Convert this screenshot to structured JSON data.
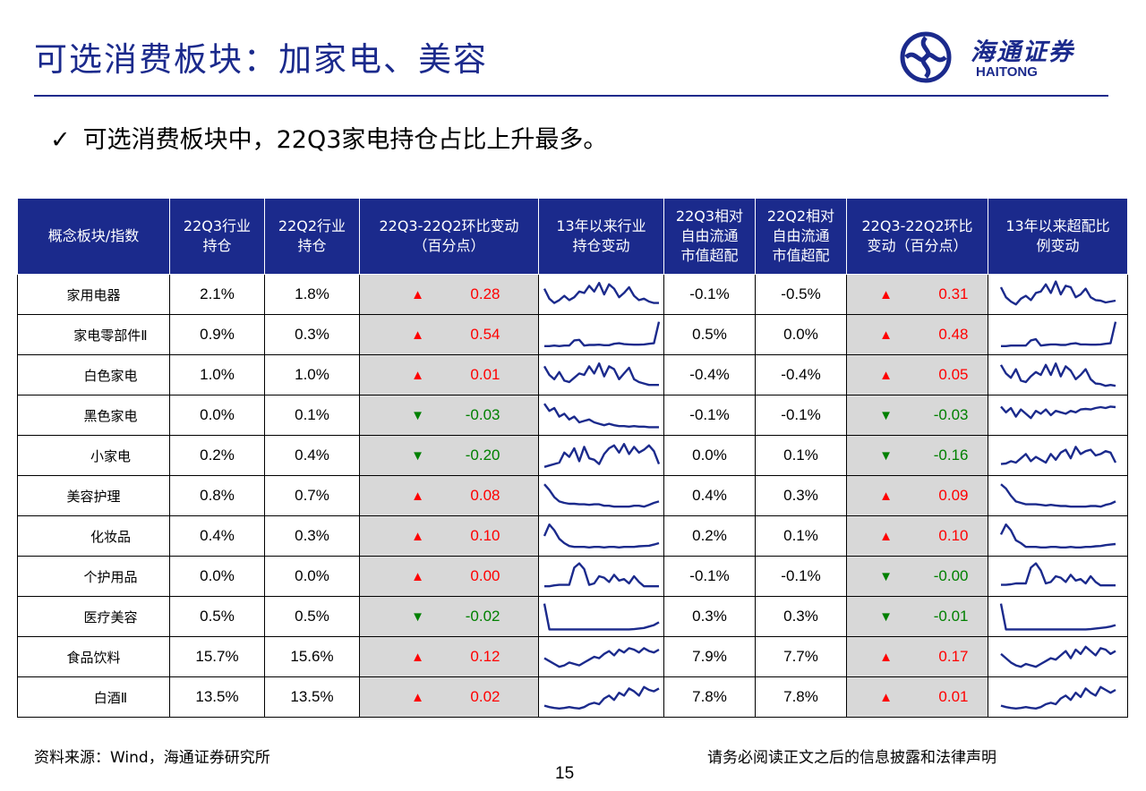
{
  "page": {
    "title": "可选消费板块：加家电、美容",
    "bullet": "可选消费板块中，22Q3家电持仓占比上升最多。",
    "source": "资料来源：Wind，海通证券研究所",
    "disclaimer": "请务必阅读正文之后的信息披露和法律声明",
    "page_number": "15"
  },
  "logo": {
    "cn": "海通证券",
    "en": "HAITONG",
    "icon": "haitong-swirl-icon"
  },
  "colors": {
    "navy": "#1b2a8c",
    "up": "#ff0000",
    "down": "#008000",
    "shade": "#d8d8d8"
  },
  "table": {
    "headers": [
      "概念板块/指数",
      "22Q3行业\n持仓",
      "22Q2行业\n持仓",
      "22Q3-22Q2环比变动\n（百分点）",
      "13年以来行业\n持仓变动",
      "22Q3相对\n自由流通\n市值超配",
      "22Q2相对\n自由流通\n市值超配",
      "22Q3-22Q2环比\n变动（百分点）",
      "13年以来超配比\n例变动"
    ],
    "rows": [
      {
        "name": "家用电器",
        "sub": false,
        "q3": "2.1%",
        "q2": "1.8%",
        "chg_dir": "up",
        "chg": "0.28",
        "q3_ow": "-0.1%",
        "q2_ow": "-0.5%",
        "ow_dir": "up",
        "ow_chg": "0.31",
        "spark1": [
          0.7,
          0.35,
          0.2,
          0.3,
          0.45,
          0.3,
          0.4,
          0.6,
          0.55,
          0.8,
          0.6,
          0.9,
          0.5,
          0.85,
          0.7,
          0.4,
          0.55,
          0.75,
          0.45,
          0.3,
          0.35,
          0.25,
          0.2,
          0.2
        ],
        "spark2": [
          0.75,
          0.4,
          0.25,
          0.15,
          0.35,
          0.45,
          0.3,
          0.55,
          0.6,
          0.85,
          0.55,
          0.95,
          0.5,
          0.8,
          0.75,
          0.4,
          0.5,
          0.7,
          0.4,
          0.3,
          0.28,
          0.22,
          0.25,
          0.28
        ]
      },
      {
        "name": "家电零部件Ⅱ",
        "sub": true,
        "q3": "0.9%",
        "q2": "0.3%",
        "chg_dir": "up",
        "chg": "0.54",
        "q3_ow": "0.5%",
        "q2_ow": "0.0%",
        "ow_dir": "up",
        "ow_chg": "0.48",
        "spark1": [
          0.1,
          0.1,
          0.12,
          0.1,
          0.12,
          0.12,
          0.3,
          0.32,
          0.12,
          0.14,
          0.14,
          0.15,
          0.13,
          0.13,
          0.18,
          0.2,
          0.17,
          0.16,
          0.15,
          0.15,
          0.16,
          0.18,
          0.2,
          0.95
        ],
        "spark2": [
          0.1,
          0.1,
          0.12,
          0.12,
          0.12,
          0.12,
          0.3,
          0.34,
          0.12,
          0.14,
          0.16,
          0.16,
          0.14,
          0.14,
          0.18,
          0.2,
          0.16,
          0.16,
          0.15,
          0.15,
          0.16,
          0.18,
          0.2,
          0.95
        ]
      },
      {
        "name": "白色家电",
        "sub": true,
        "q3": "1.0%",
        "q2": "1.0%",
        "chg_dir": "up",
        "chg": "0.01",
        "q3_ow": "-0.4%",
        "q2_ow": "-0.4%",
        "ow_dir": "up",
        "ow_chg": "0.05",
        "spark1": [
          0.8,
          0.5,
          0.35,
          0.6,
          0.3,
          0.25,
          0.4,
          0.55,
          0.5,
          0.8,
          0.55,
          0.9,
          0.45,
          0.8,
          0.7,
          0.35,
          0.55,
          0.75,
          0.35,
          0.25,
          0.2,
          0.15,
          0.15,
          0.15
        ],
        "spark2": [
          0.85,
          0.55,
          0.4,
          0.7,
          0.3,
          0.25,
          0.45,
          0.6,
          0.5,
          0.85,
          0.5,
          0.9,
          0.45,
          0.8,
          0.65,
          0.35,
          0.5,
          0.7,
          0.35,
          0.2,
          0.18,
          0.12,
          0.15,
          0.12
        ]
      },
      {
        "name": "黑色家电",
        "sub": true,
        "q3": "0.0%",
        "q2": "0.1%",
        "chg_dir": "down",
        "chg": "-0.03",
        "q3_ow": "-0.1%",
        "q2_ow": "-0.1%",
        "ow_dir": "down",
        "ow_chg": "-0.03",
        "spark1": [
          0.9,
          0.65,
          0.75,
          0.45,
          0.55,
          0.35,
          0.45,
          0.25,
          0.3,
          0.35,
          0.25,
          0.2,
          0.15,
          0.2,
          0.15,
          0.12,
          0.12,
          0.1,
          0.12,
          0.1,
          0.1,
          0.08,
          0.08,
          0.08
        ],
        "spark2": [
          0.8,
          0.6,
          0.75,
          0.45,
          0.7,
          0.55,
          0.4,
          0.65,
          0.55,
          0.7,
          0.5,
          0.65,
          0.6,
          0.55,
          0.65,
          0.6,
          0.7,
          0.72,
          0.7,
          0.75,
          0.78,
          0.75,
          0.8,
          0.78
        ]
      },
      {
        "name": "小家电",
        "sub": true,
        "q3": "0.2%",
        "q2": "0.4%",
        "chg_dir": "down",
        "chg": "-0.20",
        "q3_ow": "0.0%",
        "q2_ow": "0.1%",
        "ow_dir": "down",
        "ow_chg": "-0.16",
        "spark1": [
          0.1,
          0.15,
          0.2,
          0.25,
          0.6,
          0.45,
          0.75,
          0.3,
          0.8,
          0.4,
          0.35,
          0.2,
          0.55,
          0.75,
          0.85,
          0.6,
          0.9,
          0.55,
          0.8,
          0.6,
          0.7,
          0.85,
          0.65,
          0.2
        ],
        "spark2": [
          0.2,
          0.22,
          0.3,
          0.25,
          0.4,
          0.55,
          0.3,
          0.45,
          0.35,
          0.25,
          0.55,
          0.35,
          0.6,
          0.7,
          0.4,
          0.8,
          0.55,
          0.65,
          0.7,
          0.5,
          0.55,
          0.65,
          0.6,
          0.25
        ]
      },
      {
        "name": "美容护理",
        "sub": false,
        "q3": "0.8%",
        "q2": "0.7%",
        "chg_dir": "up",
        "chg": "0.08",
        "q3_ow": "0.4%",
        "q2_ow": "0.3%",
        "ow_dir": "up",
        "ow_chg": "0.09",
        "spark1": [
          0.9,
          0.7,
          0.45,
          0.3,
          0.25,
          0.22,
          0.22,
          0.2,
          0.2,
          0.18,
          0.2,
          0.2,
          0.15,
          0.15,
          0.12,
          0.12,
          0.12,
          0.12,
          0.15,
          0.15,
          0.12,
          0.18,
          0.25,
          0.3
        ],
        "spark2": [
          0.9,
          0.75,
          0.5,
          0.3,
          0.25,
          0.2,
          0.2,
          0.2,
          0.18,
          0.16,
          0.18,
          0.16,
          0.14,
          0.14,
          0.12,
          0.12,
          0.12,
          0.12,
          0.14,
          0.14,
          0.12,
          0.18,
          0.22,
          0.3
        ]
      },
      {
        "name": "化妆品",
        "sub": true,
        "q3": "0.4%",
        "q2": "0.3%",
        "chg_dir": "up",
        "chg": "0.10",
        "q3_ow": "0.2%",
        "q2_ow": "0.1%",
        "ow_dir": "up",
        "ow_chg": "0.10",
        "spark1": [
          0.5,
          0.9,
          0.7,
          0.4,
          0.25,
          0.15,
          0.12,
          0.12,
          0.12,
          0.1,
          0.12,
          0.12,
          0.1,
          0.12,
          0.12,
          0.1,
          0.12,
          0.12,
          0.12,
          0.14,
          0.15,
          0.16,
          0.2,
          0.25
        ],
        "spark2": [
          0.55,
          0.9,
          0.7,
          0.35,
          0.25,
          0.12,
          0.12,
          0.12,
          0.1,
          0.1,
          0.12,
          0.12,
          0.1,
          0.1,
          0.12,
          0.1,
          0.1,
          0.12,
          0.12,
          0.14,
          0.15,
          0.18,
          0.2,
          0.22
        ]
      },
      {
        "name": "个护用品",
        "sub": true,
        "q3": "0.0%",
        "q2": "0.0%",
        "chg_dir": "up",
        "chg": "0.00",
        "q3_ow": "-0.1%",
        "q2_ow": "-0.1%",
        "ow_dir": "down",
        "ow_chg": "-0.00",
        "spark1": [
          0.15,
          0.15,
          0.18,
          0.2,
          0.2,
          0.2,
          0.8,
          0.95,
          0.75,
          0.2,
          0.25,
          0.5,
          0.45,
          0.3,
          0.55,
          0.35,
          0.4,
          0.25,
          0.5,
          0.3,
          0.15,
          0.15,
          0.15,
          0.15
        ],
        "spark2": [
          0.2,
          0.2,
          0.22,
          0.25,
          0.25,
          0.25,
          0.8,
          0.95,
          0.7,
          0.25,
          0.3,
          0.5,
          0.45,
          0.3,
          0.55,
          0.35,
          0.4,
          0.25,
          0.5,
          0.3,
          0.18,
          0.18,
          0.18,
          0.18
        ]
      },
      {
        "name": "医疗美容",
        "sub": true,
        "q3": "0.5%",
        "q2": "0.5%",
        "chg_dir": "down",
        "chg": "-0.02",
        "q3_ow": "0.3%",
        "q2_ow": "0.3%",
        "ow_dir": "down",
        "ow_chg": "-0.01",
        "spark1": [
          0.95,
          0.05,
          0.05,
          0.05,
          0.05,
          0.05,
          0.05,
          0.05,
          0.05,
          0.05,
          0.05,
          0.05,
          0.05,
          0.05,
          0.05,
          0.05,
          0.05,
          0.05,
          0.06,
          0.08,
          0.1,
          0.15,
          0.2,
          0.3
        ],
        "spark2": [
          0.95,
          0.05,
          0.05,
          0.05,
          0.05,
          0.05,
          0.05,
          0.05,
          0.05,
          0.05,
          0.05,
          0.05,
          0.05,
          0.05,
          0.05,
          0.05,
          0.05,
          0.05,
          0.06,
          0.08,
          0.1,
          0.12,
          0.15,
          0.2
        ]
      },
      {
        "name": "食品饮料",
        "sub": false,
        "q3": "15.7%",
        "q2": "15.6%",
        "chg_dir": "up",
        "chg": "0.12",
        "q3_ow": "7.9%",
        "q2_ow": "7.7%",
        "ow_dir": "up",
        "ow_chg": "0.17",
        "spark1": [
          0.45,
          0.35,
          0.25,
          0.15,
          0.2,
          0.3,
          0.25,
          0.2,
          0.3,
          0.4,
          0.5,
          0.45,
          0.6,
          0.7,
          0.55,
          0.75,
          0.65,
          0.8,
          0.75,
          0.65,
          0.8,
          0.7,
          0.65,
          0.75
        ],
        "spark2": [
          0.6,
          0.45,
          0.3,
          0.2,
          0.15,
          0.25,
          0.2,
          0.15,
          0.25,
          0.35,
          0.45,
          0.4,
          0.55,
          0.7,
          0.45,
          0.75,
          0.6,
          0.85,
          0.7,
          0.55,
          0.8,
          0.75,
          0.6,
          0.7
        ]
      },
      {
        "name": "白酒Ⅱ",
        "sub": true,
        "q3": "13.5%",
        "q2": "13.5%",
        "chg_dir": "up",
        "chg": "0.02",
        "q3_ow": "7.8%",
        "q2_ow": "7.8%",
        "ow_dir": "up",
        "ow_chg": "0.01",
        "spark1": [
          0.2,
          0.15,
          0.12,
          0.1,
          0.12,
          0.15,
          0.12,
          0.1,
          0.15,
          0.25,
          0.3,
          0.25,
          0.45,
          0.55,
          0.4,
          0.65,
          0.55,
          0.8,
          0.7,
          0.55,
          0.85,
          0.75,
          0.7,
          0.8
        ],
        "spark2": [
          0.2,
          0.15,
          0.12,
          0.1,
          0.12,
          0.15,
          0.12,
          0.1,
          0.15,
          0.25,
          0.3,
          0.25,
          0.45,
          0.55,
          0.4,
          0.65,
          0.5,
          0.8,
          0.65,
          0.55,
          0.85,
          0.75,
          0.65,
          0.75
        ]
      }
    ]
  }
}
